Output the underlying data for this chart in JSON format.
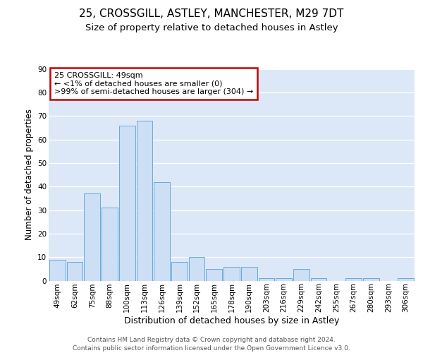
{
  "title1": "25, CROSSGILL, ASTLEY, MANCHESTER, M29 7DT",
  "title2": "Size of property relative to detached houses in Astley",
  "xlabel": "Distribution of detached houses by size in Astley",
  "ylabel": "Number of detached properties",
  "categories": [
    "49sqm",
    "62sqm",
    "75sqm",
    "88sqm",
    "100sqm",
    "113sqm",
    "126sqm",
    "139sqm",
    "152sqm",
    "165sqm",
    "178sqm",
    "190sqm",
    "203sqm",
    "216sqm",
    "229sqm",
    "242sqm",
    "255sqm",
    "267sqm",
    "280sqm",
    "293sqm",
    "306sqm"
  ],
  "values": [
    9,
    8,
    37,
    31,
    66,
    68,
    42,
    8,
    10,
    5,
    6,
    6,
    1,
    1,
    5,
    1,
    0,
    1,
    1,
    0,
    1
  ],
  "bar_color": "#ccdff5",
  "bar_edge_color": "#6aaad4",
  "bg_color": "#ffffff",
  "plot_bg_color": "#dce8f8",
  "grid_color": "#ffffff",
  "annotation_text": "25 CROSSGILL: 49sqm\n← <1% of detached houses are smaller (0)\n>99% of semi-detached houses are larger (304) →",
  "annotation_box_color": "#ffffff",
  "annotation_box_edge_color": "#cc0000",
  "ylim": [
    0,
    90
  ],
  "yticks": [
    0,
    10,
    20,
    30,
    40,
    50,
    60,
    70,
    80,
    90
  ],
  "footer_line1": "Contains HM Land Registry data © Crown copyright and database right 2024.",
  "footer_line2": "Contains public sector information licensed under the Open Government Licence v3.0.",
  "title1_fontsize": 11,
  "title2_fontsize": 9.5,
  "xlabel_fontsize": 9,
  "ylabel_fontsize": 8.5,
  "tick_fontsize": 7.5,
  "annotation_fontsize": 8,
  "footer_fontsize": 6.5
}
